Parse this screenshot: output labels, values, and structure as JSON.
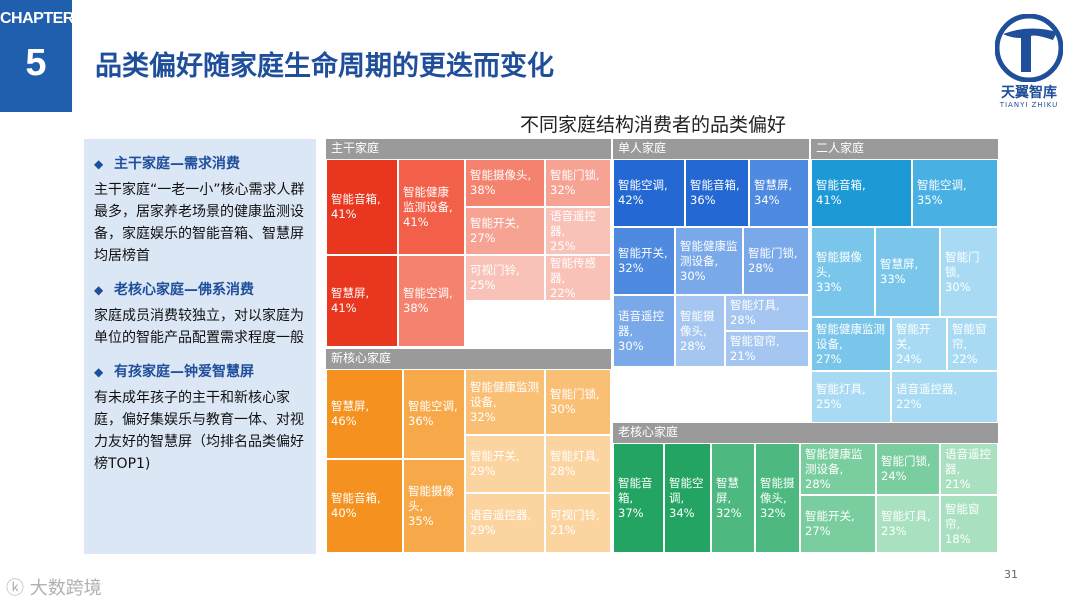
{
  "header": {
    "chapter_label": "CHAPTER",
    "chapter_number": "5",
    "title": "品类偏好随家庭生命周期的更迭而变化",
    "logo_cn": "天翼智库",
    "logo_en": "TIANYI ZHIKU"
  },
  "chart_title": "不同家庭结构消费者的品类偏好",
  "bullets": [
    {
      "heading": "主干家庭—需求消费",
      "body": "主干家庭“一老一小”核心需求人群最多，居家养老场景的健康监测设备，家庭娱乐的智能音箱、智慧屏均居榜首"
    },
    {
      "heading": "老核心家庭—佛系消费",
      "body": "家庭成员消费较独立，对以家庭为单位的智能产品配置需求程度一般"
    },
    {
      "heading": "有孩家庭—钟爱智慧屏",
      "body": "有未成年孩子的主干和新核心家庭，偏好集娱乐与教育一体、对视力友好的智慧屏（均排名品类偏好榜TOP1)"
    }
  ],
  "treemap": {
    "groups": [
      {
        "name": "主干家庭",
        "colors": [
          "#e8371e",
          "#f2604a",
          "#f4826e",
          "#f6a394",
          "#f8c2b8"
        ],
        "items": [
          {
            "label": "智能音箱,",
            "value": "41%"
          },
          {
            "label": "智能健康监测设备,",
            "value": "41%"
          },
          {
            "label": "智慧屏,",
            "value": "41%"
          },
          {
            "label": "智能空调,",
            "value": "38%"
          },
          {
            "label": "智能摄像头,",
            "value": "38%"
          },
          {
            "label": "智能门锁,",
            "value": "32%"
          },
          {
            "label": "智能开关,",
            "value": "27%"
          },
          {
            "label": "语音遥控器,",
            "value": "25%"
          },
          {
            "label": "可视门铃,",
            "value": "25%"
          },
          {
            "label": "智能传感器,",
            "value": "22%"
          }
        ]
      },
      {
        "name": "单人家庭",
        "colors": [
          "#2468d4",
          "#4d8ae0",
          "#7aa9e9",
          "#a5c6f1"
        ],
        "items": [
          {
            "label": "智能空调,",
            "value": "42%"
          },
          {
            "label": "智能音箱,",
            "value": "36%"
          },
          {
            "label": "智慧屏,",
            "value": "34%"
          },
          {
            "label": "智能开关,",
            "value": "32%"
          },
          {
            "label": "智能健康监测设备,",
            "value": "30%"
          },
          {
            "label": "智能门锁,",
            "value": "28%"
          },
          {
            "label": "语音遥控器,",
            "value": "30%"
          },
          {
            "label": "智能摄像头,",
            "value": "28%"
          },
          {
            "label": "智能灯具,",
            "value": "28%"
          },
          {
            "label": "智能窗帘,",
            "value": "21%"
          }
        ]
      },
      {
        "name": "二人家庭",
        "colors": [
          "#1d9ad6",
          "#48b0e2",
          "#7ac6eb",
          "#a8dbf3"
        ],
        "items": [
          {
            "label": "智能音箱,",
            "value": "41%"
          },
          {
            "label": "智能空调,",
            "value": "35%"
          },
          {
            "label": "智能摄像头,",
            "value": "33%"
          },
          {
            "label": "智慧屏,",
            "value": "33%"
          },
          {
            "label": "智能门锁,",
            "value": "30%"
          },
          {
            "label": "智能健康监测设备,",
            "value": "27%"
          },
          {
            "label": "智能开关,",
            "value": "24%"
          },
          {
            "label": "智能窗帘,",
            "value": "22%"
          },
          {
            "label": "智能灯具,",
            "value": "25%"
          },
          {
            "label": "语音遥控器,",
            "value": "22%"
          }
        ]
      },
      {
        "name": "新核心家庭",
        "colors": [
          "#f5921f",
          "#f7a94a",
          "#f9bf75",
          "#fbd4a0"
        ],
        "items": [
          {
            "label": "智慧屏,",
            "value": "46%"
          },
          {
            "label": "智能空调,",
            "value": "36%"
          },
          {
            "label": "智能健康监测设备,",
            "value": "32%"
          },
          {
            "label": "智能门锁,",
            "value": "30%"
          },
          {
            "label": "智能开关,",
            "value": "29%"
          },
          {
            "label": "智能灯具,",
            "value": "28%"
          },
          {
            "label": "智能音箱,",
            "value": "40%"
          },
          {
            "label": "智能摄像头,",
            "value": "35%"
          },
          {
            "label": "语音遥控器,",
            "value": "29%"
          },
          {
            "label": "可视门铃,",
            "value": "21%"
          }
        ]
      },
      {
        "name": "老核心家庭",
        "colors": [
          "#23a463",
          "#4db980",
          "#7acd9f",
          "#a8e0c0"
        ],
        "items": [
          {
            "label": "智能音箱,",
            "value": "37%"
          },
          {
            "label": "智能空调,",
            "value": "34%"
          },
          {
            "label": "智慧屏,",
            "value": "32%"
          },
          {
            "label": "智能摄像头,",
            "value": "32%"
          },
          {
            "label": "智能健康监测设备,",
            "value": "28%"
          },
          {
            "label": "智能门锁,",
            "value": "24%"
          },
          {
            "label": "语音遥控器,",
            "value": "21%"
          },
          {
            "label": "智能开关,",
            "value": "27%"
          },
          {
            "label": "智能灯具,",
            "value": "23%"
          },
          {
            "label": "智能窗帘,",
            "value": "18%"
          }
        ]
      }
    ]
  },
  "footer": {
    "page_number": "31",
    "watermark": "大数跨境"
  }
}
